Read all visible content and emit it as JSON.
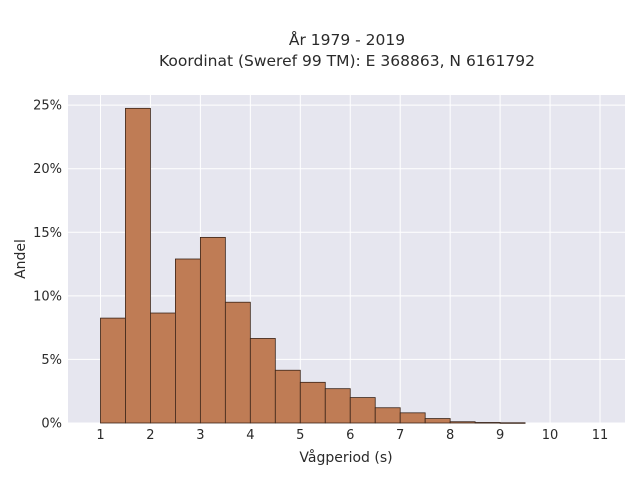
{
  "chart_data": {
    "type": "bar",
    "title": "År 1979 - 2019",
    "subtitle": "Koordinat (Sweref 99 TM): E 368863, N 6161792",
    "xlabel": "Vågperiod (s)",
    "ylabel": "Andel",
    "xlim": [
      0.35,
      11.5
    ],
    "ylim": [
      0,
      25.8
    ],
    "xticks": [
      1,
      2,
      3,
      4,
      5,
      6,
      7,
      8,
      9,
      10,
      11
    ],
    "yticks": [
      0,
      5,
      10,
      15,
      20,
      25
    ],
    "ytick_labels": [
      "0%",
      "5%",
      "10%",
      "15%",
      "20%",
      "25%"
    ],
    "bin_width": 0.5,
    "bins": [
      {
        "x0": 1.0,
        "value": 8.25
      },
      {
        "x0": 1.5,
        "value": 24.75
      },
      {
        "x0": 2.0,
        "value": 8.65
      },
      {
        "x0": 2.5,
        "value": 12.9
      },
      {
        "x0": 3.0,
        "value": 14.6
      },
      {
        "x0": 3.5,
        "value": 9.5
      },
      {
        "x0": 4.0,
        "value": 6.65
      },
      {
        "x0": 4.5,
        "value": 4.15
      },
      {
        "x0": 5.0,
        "value": 3.2
      },
      {
        "x0": 5.5,
        "value": 2.7
      },
      {
        "x0": 6.0,
        "value": 2.0
      },
      {
        "x0": 6.5,
        "value": 1.2
      },
      {
        "x0": 7.0,
        "value": 0.8
      },
      {
        "x0": 7.5,
        "value": 0.35
      },
      {
        "x0": 8.0,
        "value": 0.1
      },
      {
        "x0": 8.5,
        "value": 0.04
      },
      {
        "x0": 9.0,
        "value": 0.02
      }
    ],
    "grid": true,
    "colors": {
      "bar_fill": "#bf7c55",
      "bar_stroke": "#3a2418",
      "plot_bg": "#e6e6ef",
      "grid": "#ffffff"
    }
  }
}
